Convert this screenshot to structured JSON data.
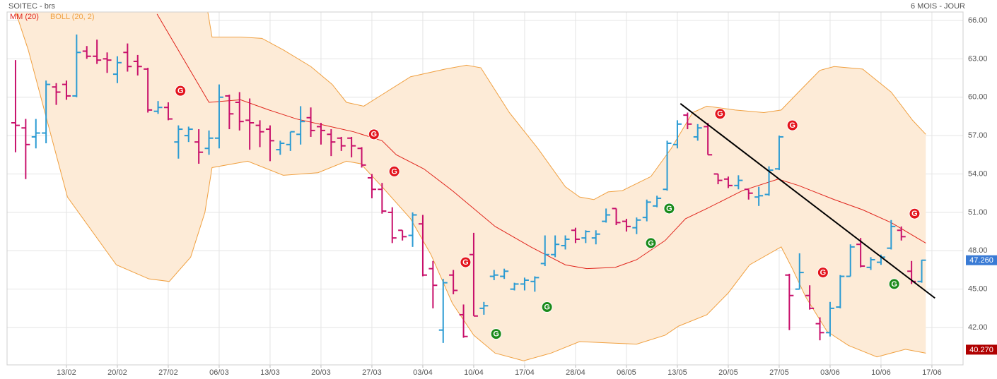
{
  "chart_data": {
    "type": "ohlc",
    "title": "SOITEC - brs",
    "period": "6 MOIS - JOUR",
    "up_color": "#2b9bd3",
    "down_color": "#c8106b",
    "grid": true,
    "xlim": [
      -0.83,
      93.06
    ],
    "ylim": [
      39.08,
      66.66
    ],
    "yticks": [
      {
        "value": 42,
        "label": "42.00"
      },
      {
        "value": 45,
        "label": "45.00"
      },
      {
        "value": 48,
        "label": "48.00"
      },
      {
        "value": 51,
        "label": "51.00"
      },
      {
        "value": 54,
        "label": "54.00"
      },
      {
        "value": 57,
        "label": "57.00"
      },
      {
        "value": 60,
        "label": "60.00"
      },
      {
        "value": 63,
        "label": "63.00"
      },
      {
        "value": 66,
        "label": "66.00"
      }
    ],
    "xticks": [
      {
        "value": 5,
        "label": "13/02"
      },
      {
        "value": 10,
        "label": "20/02"
      },
      {
        "value": 15,
        "label": "27/02"
      },
      {
        "value": 20,
        "label": "06/03"
      },
      {
        "value": 25,
        "label": "13/03"
      },
      {
        "value": 30,
        "label": "20/03"
      },
      {
        "value": 35,
        "label": "27/03"
      },
      {
        "value": 40,
        "label": "03/04"
      },
      {
        "value": 45,
        "label": "10/04"
      },
      {
        "value": 50,
        "label": "17/04"
      },
      {
        "value": 55,
        "label": "28/04"
      },
      {
        "value": 60,
        "label": "06/05"
      },
      {
        "value": 65,
        "label": "13/05"
      },
      {
        "value": 70,
        "label": "20/05"
      },
      {
        "value": 75,
        "label": "27/05"
      },
      {
        "value": 80,
        "label": "03/06"
      },
      {
        "value": 85,
        "label": "10/06"
      },
      {
        "value": 90,
        "label": "17/06"
      }
    ],
    "ohlc": {
      "open": [
        58.0,
        57.6,
        56.9,
        57.2,
        60.8,
        61.0,
        60.1,
        63.6,
        63.2,
        63.0,
        61.8,
        63.5,
        62.8,
        62.2,
        58.9,
        59.2,
        56.5,
        57.0,
        56.5,
        56.0,
        56.8,
        60.1,
        59.6,
        58.2,
        57.8,
        57.5,
        55.9,
        56.3,
        57.1,
        58.4,
        57.7,
        57.1,
        56.8,
        56.8,
        56.0,
        53.7,
        52.8,
        51.0,
        49.6,
        49.2,
        50.1,
        46.6,
        41.8,
        46.1,
        43.0,
        47.7,
        43.5,
        46.0,
        46.0,
        45.0,
        45.4,
        45.6,
        47.0,
        47.7,
        48.4,
        49.6,
        49.0,
        49.0,
        50.3,
        51.3,
        50.3,
        49.8,
        50.6,
        51.5,
        52.8,
        56.3,
        58.6,
        56.9,
        57.7,
        54.0,
        53.6,
        53.1,
        52.8,
        52.2,
        52.4,
        54.4,
        46.1,
        45.0,
        44.5,
        42.3,
        41.6,
        43.6,
        46.0,
        48.5,
        46.7,
        47.1,
        48.2,
        49.6,
        46.4,
        45.6
      ],
      "high": [
        62.9,
        58.3,
        58.3,
        61.3,
        61.1,
        61.3,
        64.9,
        64.0,
        64.5,
        63.5,
        63.2,
        64.2,
        63.3,
        62.3,
        59.7,
        59.6,
        57.8,
        57.7,
        57.5,
        57.4,
        61.0,
        60.2,
        60.4,
        59.9,
        58.2,
        57.8,
        56.6,
        57.3,
        59.3,
        59.2,
        58.0,
        57.5,
        56.9,
        56.9,
        56.1,
        54.0,
        53.3,
        51.4,
        49.6,
        51.0,
        50.8,
        47.2,
        45.8,
        46.5,
        43.8,
        49.4,
        44.0,
        46.5,
        46.6,
        45.5,
        45.9,
        46.0,
        49.2,
        49.2,
        49.2,
        49.8,
        49.6,
        49.6,
        51.3,
        51.3,
        50.5,
        50.6,
        52.0,
        52.3,
        56.6,
        58.2,
        58.8,
        57.9,
        58.0,
        54.0,
        53.8,
        53.9,
        52.8,
        53.0,
        54.6,
        57.0,
        46.2,
        47.8,
        45.3,
        42.8,
        44.0,
        46.1,
        48.5,
        49.0,
        47.5,
        47.7,
        50.4,
        49.9,
        47.2,
        47.3
      ],
      "low": [
        55.7,
        53.6,
        56.0,
        56.4,
        59.4,
        59.8,
        60.0,
        63.0,
        62.6,
        61.9,
        61.1,
        62.0,
        61.7,
        58.8,
        58.7,
        58.2,
        55.2,
        56.5,
        54.8,
        55.5,
        56.0,
        57.5,
        57.4,
        55.9,
        56.1,
        55.0,
        55.5,
        55.8,
        56.3,
        56.9,
        56.3,
        55.4,
        55.8,
        55.3,
        54.5,
        52.1,
        50.9,
        48.6,
        48.8,
        48.3,
        46.0,
        43.5,
        40.8,
        44.6,
        41.2,
        42.9,
        43.0,
        45.7,
        45.8,
        44.9,
        44.9,
        44.8,
        46.8,
        47.5,
        48.1,
        48.6,
        48.6,
        48.5,
        50.2,
        50.0,
        49.5,
        49.3,
        50.3,
        51.4,
        52.7,
        56.0,
        57.5,
        56.6,
        55.5,
        53.2,
        52.9,
        52.8,
        52.0,
        51.5,
        52.3,
        54.3,
        41.8,
        45.0,
        43.4,
        41.0,
        41.3,
        43.5,
        46.0,
        46.7,
        46.5,
        46.9,
        48.1,
        48.8,
        45.4,
        45.5
      ],
      "close": [
        57.8,
        56.3,
        57.2,
        61.0,
        60.4,
        60.1,
        63.5,
        63.2,
        62.9,
        62.9,
        62.7,
        62.4,
        62.4,
        59.0,
        59.2,
        58.3,
        57.5,
        57.5,
        55.7,
        56.8,
        60.0,
        58.7,
        58.1,
        58.0,
        57.3,
        56.6,
        56.4,
        57.3,
        58.1,
        57.4,
        57.4,
        56.5,
        56.2,
        56.2,
        54.7,
        52.8,
        51.1,
        49.0,
        49.1,
        50.8,
        46.1,
        45.3,
        45.5,
        44.9,
        41.3,
        42.9,
        43.7,
        46.1,
        46.4,
        45.4,
        45.7,
        45.9,
        47.7,
        48.5,
        48.9,
        48.9,
        49.5,
        49.3,
        50.8,
        50.2,
        49.9,
        50.4,
        51.8,
        52.1,
        56.4,
        57.9,
        57.9,
        57.6,
        55.5,
        53.5,
        53.1,
        53.5,
        52.5,
        52.3,
        54.3,
        56.9,
        44.5,
        46.3,
        43.5,
        41.6,
        43.5,
        46.0,
        48.3,
        46.8,
        47.3,
        47.5,
        49.9,
        49.1,
        45.6,
        47.26
      ]
    },
    "indicators": [
      {
        "name": "MM (20)",
        "color": "#e0241c",
        "x": [
          13.9,
          19.0,
          22.1,
          24.9,
          27.6,
          30.4,
          33.2,
          36.0,
          37.4,
          40.1,
          42.9,
          47.1,
          50.6,
          54.0,
          56.1,
          58.9,
          61.0,
          63.8,
          65.8,
          67.9,
          71.4,
          74.9,
          76.9,
          80.4,
          83.2,
          86.0,
          89.4
        ],
        "values": [
          66.5,
          59.6,
          59.8,
          59.0,
          58.3,
          57.8,
          57.3,
          56.6,
          55.5,
          54.4,
          52.7,
          49.9,
          48.3,
          46.9,
          46.6,
          46.7,
          47.3,
          48.8,
          50.5,
          51.3,
          52.7,
          53.6,
          53.1,
          52.0,
          51.2,
          50.2,
          48.6
        ]
      },
      {
        "name": "BOLL (20, 2)",
        "color": "#f0a040",
        "fill": "#fdebd7",
        "upper": {
          "x": [
            0,
            8.9,
            15.8,
            18.6,
            19.3,
            22.1,
            24.2,
            26.3,
            29.0,
            31.1,
            32.5,
            34.2,
            36.0,
            38.8,
            42.2,
            44.3,
            45.7,
            48.5,
            51.3,
            54.0,
            55.4,
            56.8,
            58.2,
            59.6,
            62.4,
            64.4,
            66.5,
            67.9,
            70.7,
            73.5,
            75.2,
            76.9,
            79.0,
            80.4,
            83.2,
            86.0,
            88.1,
            89.4
          ],
          "values": [
            76,
            78,
            74,
            68,
            64.7,
            64.7,
            64.6,
            63.7,
            62.4,
            61.0,
            59.6,
            59.3,
            60.2,
            61.6,
            62.2,
            62.5,
            62.3,
            58.8,
            56.0,
            53.0,
            52.2,
            52.0,
            52.6,
            52.7,
            53.8,
            56.0,
            58.8,
            59.3,
            59.0,
            58.8,
            59.0,
            60.4,
            62.1,
            62.4,
            62.2,
            60.4,
            58.2,
            57.1
          ]
        },
        "lower": {
          "x": [
            0,
            1.25,
            5.1,
            9.9,
            13.1,
            15.1,
            17.2,
            18.6,
            19.3,
            22.8,
            26.3,
            29.7,
            32.5,
            33.9,
            36.0,
            38.8,
            40.8,
            42.9,
            45.0,
            47.1,
            49.9,
            52.6,
            55.4,
            58.2,
            61.0,
            63.8,
            65.1,
            67.9,
            70.0,
            72.1,
            75.2,
            76.3,
            77.6,
            79.7,
            81.8,
            84.6,
            87.4,
            89.4
          ],
          "values": [
            66.7,
            63.7,
            52.2,
            46.9,
            45.8,
            45.6,
            47.5,
            51.0,
            54.5,
            55.0,
            53.9,
            54.1,
            55.0,
            54.8,
            53.0,
            50.5,
            47.7,
            43.9,
            41.4,
            40.0,
            39.4,
            40.0,
            40.9,
            40.8,
            40.7,
            41.4,
            42.1,
            43.0,
            44.7,
            46.9,
            48.3,
            46.6,
            44.4,
            41.7,
            40.6,
            39.7,
            40.3,
            40.0
          ]
        }
      }
    ],
    "trendline": {
      "color": "#000000",
      "x": [
        65.3,
        90.3
      ],
      "values": [
        59.5,
        44.3
      ]
    },
    "signals": [
      {
        "label": "G",
        "color": "#e3141c",
        "x": 16.2,
        "y": 60.5
      },
      {
        "label": "G",
        "color": "#e3141c",
        "x": 35.2,
        "y": 57.1
      },
      {
        "label": "G",
        "color": "#e3141c",
        "x": 37.2,
        "y": 54.2
      },
      {
        "label": "G",
        "color": "#e3141c",
        "x": 44.2,
        "y": 47.1
      },
      {
        "label": "G",
        "color": "#e3141c",
        "x": 69.2,
        "y": 58.7
      },
      {
        "label": "G",
        "color": "#e3141c",
        "x": 76.3,
        "y": 57.8
      },
      {
        "label": "G",
        "color": "#e3141c",
        "x": 79.3,
        "y": 46.3
      },
      {
        "label": "G",
        "color": "#e3141c",
        "x": 88.3,
        "y": 50.9
      },
      {
        "label": "G",
        "color": "#1a8a1a",
        "x": 47.2,
        "y": 41.5
      },
      {
        "label": "G",
        "color": "#1a8a1a",
        "x": 52.2,
        "y": 43.6
      },
      {
        "label": "G",
        "color": "#1a8a1a",
        "x": 62.4,
        "y": 48.6
      },
      {
        "label": "G",
        "color": "#1a8a1a",
        "x": 64.2,
        "y": 51.3
      },
      {
        "label": "G",
        "color": "#1a8a1a",
        "x": 86.3,
        "y": 45.4
      }
    ],
    "price_markers": [
      {
        "value": 47.26,
        "label": "47.260",
        "color": "#3a7bd5"
      },
      {
        "value": 40.27,
        "label": "40.270",
        "color": "#b00000"
      }
    ]
  }
}
